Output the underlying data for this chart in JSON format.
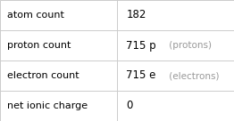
{
  "rows": [
    {
      "label": "atom count",
      "value_main": "182",
      "value_unit": ""
    },
    {
      "label": "proton count",
      "value_main": "715 p",
      "value_unit": " (protons)"
    },
    {
      "label": "electron count",
      "value_main": "715 e",
      "value_unit": " (electrons)"
    },
    {
      "label": "net ionic charge",
      "value_main": "0",
      "value_unit": ""
    }
  ],
  "col_split": 0.5,
  "background_color": "#ffffff",
  "border_color": "#cccccc",
  "label_color": "#000000",
  "value_color": "#000000",
  "unit_color": "#999999",
  "label_fontsize": 8.0,
  "value_fontsize": 8.5,
  "unit_fontsize": 7.5
}
